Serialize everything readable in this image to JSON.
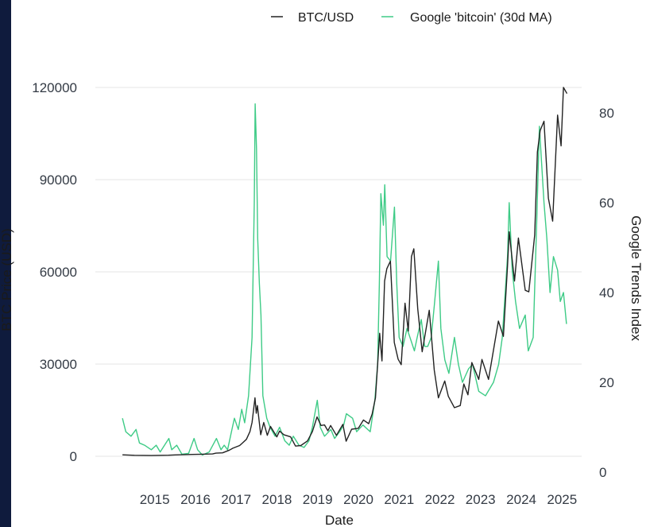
{
  "chart_data": {
    "type": "line",
    "xlabel": "Date",
    "ylabel": "BTC Price (USD)",
    "y2label": "Google Trends Index",
    "x_ticks": [
      "2015",
      "2016",
      "2017",
      "2018",
      "2019",
      "2020",
      "2021",
      "2022",
      "2023",
      "2024",
      "2025"
    ],
    "ylim": [
      0,
      120000
    ],
    "y_ticks": [
      0,
      30000,
      60000,
      90000,
      120000
    ],
    "y2lim": [
      0,
      80
    ],
    "y2_ticks": [
      0,
      20,
      40,
      60,
      80
    ],
    "grid": "horizontal",
    "legend": "top",
    "series": [
      {
        "name": "BTC/USD",
        "axis": "left",
        "color": "#222222",
        "points": [
          [
            "2014-09-15",
            460
          ],
          [
            "2015-01-01",
            320
          ],
          [
            "2015-06-01",
            230
          ],
          [
            "2015-11-01",
            330
          ],
          [
            "2016-01-01",
            430
          ],
          [
            "2016-06-01",
            600
          ],
          [
            "2016-12-01",
            750
          ],
          [
            "2017-01-01",
            1000
          ],
          [
            "2017-03-01",
            1100
          ],
          [
            "2017-05-01",
            2000
          ],
          [
            "2017-06-01",
            2600
          ],
          [
            "2017-08-01",
            3500
          ],
          [
            "2017-09-01",
            4500
          ],
          [
            "2017-10-01",
            5500
          ],
          [
            "2017-11-01",
            8000
          ],
          [
            "2017-11-20",
            11000
          ],
          [
            "2017-12-17",
            19000
          ],
          [
            "2017-12-28",
            14000
          ],
          [
            "2018-01-07",
            16500
          ],
          [
            "2018-02-06",
            7000
          ],
          [
            "2018-03-05",
            11000
          ],
          [
            "2018-04-06",
            6800
          ],
          [
            "2018-05-05",
            9700
          ],
          [
            "2018-07-01",
            6300
          ],
          [
            "2018-07-25",
            8200
          ],
          [
            "2018-09-01",
            7000
          ],
          [
            "2018-11-01",
            6300
          ],
          [
            "2018-12-15",
            3300
          ],
          [
            "2019-02-01",
            3500
          ],
          [
            "2019-04-02",
            5000
          ],
          [
            "2019-05-15",
            8000
          ],
          [
            "2019-06-26",
            12800
          ],
          [
            "2019-08-01",
            10000
          ],
          [
            "2019-09-01",
            10200
          ],
          [
            "2019-10-01",
            8300
          ],
          [
            "2019-10-26",
            10000
          ],
          [
            "2019-12-17",
            6800
          ],
          [
            "2020-02-13",
            10400
          ],
          [
            "2020-03-13",
            4900
          ],
          [
            "2020-05-01",
            8800
          ],
          [
            "2020-07-01",
            9100
          ],
          [
            "2020-08-15",
            11800
          ],
          [
            "2020-10-01",
            10600
          ],
          [
            "2020-11-01",
            13700
          ],
          [
            "2020-12-01",
            19000
          ],
          [
            "2021-01-08",
            40000
          ],
          [
            "2021-01-28",
            31000
          ],
          [
            "2021-02-21",
            57000
          ],
          [
            "2021-03-13",
            61000
          ],
          [
            "2021-04-14",
            63500
          ],
          [
            "2021-05-19",
            37000
          ],
          [
            "2021-06-22",
            31600
          ],
          [
            "2021-07-20",
            29800
          ],
          [
            "2021-08-23",
            49800
          ],
          [
            "2021-09-21",
            40700
          ],
          [
            "2021-10-20",
            65000
          ],
          [
            "2021-11-10",
            67500
          ],
          [
            "2021-12-15",
            48000
          ],
          [
            "2022-01-24",
            34000
          ],
          [
            "2022-03-28",
            47500
          ],
          [
            "2022-05-12",
            28000
          ],
          [
            "2022-06-18",
            19000
          ],
          [
            "2022-08-14",
            24500
          ],
          [
            "2022-09-15",
            19500
          ],
          [
            "2022-11-09",
            15800
          ],
          [
            "2022-12-31",
            16500
          ],
          [
            "2023-02-01",
            23500
          ],
          [
            "2023-03-10",
            20000
          ],
          [
            "2023-04-14",
            30500
          ],
          [
            "2023-06-15",
            25000
          ],
          [
            "2023-07-14",
            31500
          ],
          [
            "2023-09-11",
            25000
          ],
          [
            "2023-10-25",
            34500
          ],
          [
            "2023-12-08",
            44000
          ],
          [
            "2024-01-22",
            39000
          ],
          [
            "2024-02-28",
            62000
          ],
          [
            "2024-03-14",
            73000
          ],
          [
            "2024-05-01",
            57000
          ],
          [
            "2024-06-05",
            71000
          ],
          [
            "2024-08-05",
            54000
          ],
          [
            "2024-09-06",
            53500
          ],
          [
            "2024-10-29",
            72000
          ],
          [
            "2024-11-22",
            99000
          ],
          [
            "2024-12-17",
            106000
          ],
          [
            "2025-01-20",
            109000
          ],
          [
            "2025-02-28",
            84000
          ],
          [
            "2025-04-08",
            76500
          ],
          [
            "2025-05-22",
            111000
          ],
          [
            "2025-06-22",
            101000
          ],
          [
            "2025-07-14",
            120000
          ],
          [
            "2025-08-14",
            118000
          ]
        ]
      },
      {
        "name": "Google 'bitcoin' (30d MA)",
        "axis": "right",
        "color": "#3ecb86",
        "points": [
          [
            "2014-09-15",
            12
          ],
          [
            "2014-10-15",
            9
          ],
          [
            "2014-12-01",
            8
          ],
          [
            "2015-01-15",
            9.5
          ],
          [
            "2015-02-15",
            6.5
          ],
          [
            "2015-04-01",
            6
          ],
          [
            "2015-06-01",
            5
          ],
          [
            "2015-07-15",
            6
          ],
          [
            "2015-08-20",
            4.5
          ],
          [
            "2015-11-05",
            7.5
          ],
          [
            "2015-12-01",
            5
          ],
          [
            "2016-01-15",
            6
          ],
          [
            "2016-03-01",
            4
          ],
          [
            "2016-05-01",
            4.2
          ],
          [
            "2016-06-18",
            7.5
          ],
          [
            "2016-07-20",
            5
          ],
          [
            "2016-09-01",
            3.8
          ],
          [
            "2016-11-01",
            4.5
          ],
          [
            "2017-01-05",
            7.5
          ],
          [
            "2017-02-15",
            5
          ],
          [
            "2017-03-15",
            6
          ],
          [
            "2017-04-15",
            5
          ],
          [
            "2017-05-28",
            10
          ],
          [
            "2017-06-15",
            12
          ],
          [
            "2017-07-20",
            9.5
          ],
          [
            "2017-08-20",
            14
          ],
          [
            "2017-09-15",
            11
          ],
          [
            "2017-10-20",
            17
          ],
          [
            "2017-11-20",
            30
          ],
          [
            "2017-12-10",
            60
          ],
          [
            "2017-12-18",
            82
          ],
          [
            "2017-12-30",
            72
          ],
          [
            "2018-01-10",
            52
          ],
          [
            "2018-01-25",
            42
          ],
          [
            "2018-02-08",
            35
          ],
          [
            "2018-02-25",
            17
          ],
          [
            "2018-04-01",
            12
          ],
          [
            "2018-05-01",
            10
          ],
          [
            "2018-06-15",
            8
          ],
          [
            "2018-07-25",
            10
          ],
          [
            "2018-09-10",
            7
          ],
          [
            "2018-10-20",
            6
          ],
          [
            "2018-11-25",
            8
          ],
          [
            "2019-01-15",
            6
          ],
          [
            "2019-03-01",
            5.5
          ],
          [
            "2019-04-15",
            7
          ],
          [
            "2019-05-15",
            10
          ],
          [
            "2019-06-28",
            16
          ],
          [
            "2019-07-25",
            10
          ],
          [
            "2019-09-01",
            8
          ],
          [
            "2019-10-28",
            9.5
          ],
          [
            "2019-12-01",
            7.5
          ],
          [
            "2020-01-15",
            9
          ],
          [
            "2020-02-20",
            10.5
          ],
          [
            "2020-03-15",
            13
          ],
          [
            "2020-05-10",
            12
          ],
          [
            "2020-06-15",
            9
          ],
          [
            "2020-08-10",
            10.5
          ],
          [
            "2020-10-15",
            9
          ],
          [
            "2020-11-25",
            16
          ],
          [
            "2020-12-20",
            24
          ],
          [
            "2021-01-05",
            42
          ],
          [
            "2021-01-18",
            62
          ],
          [
            "2021-02-10",
            55
          ],
          [
            "2021-02-22",
            64
          ],
          [
            "2021-03-15",
            48
          ],
          [
            "2021-04-15",
            47
          ],
          [
            "2021-05-20",
            59
          ],
          [
            "2021-06-10",
            42
          ],
          [
            "2021-07-01",
            30
          ],
          [
            "2021-08-05",
            28
          ],
          [
            "2021-09-10",
            32
          ],
          [
            "2021-10-20",
            29
          ],
          [
            "2021-11-15",
            27
          ],
          [
            "2021-12-10",
            30
          ],
          [
            "2022-01-15",
            34
          ],
          [
            "2022-02-15",
            28
          ],
          [
            "2022-03-15",
            28
          ],
          [
            "2022-04-15",
            30
          ],
          [
            "2022-05-12",
            37
          ],
          [
            "2022-06-18",
            47
          ],
          [
            "2022-07-10",
            32
          ],
          [
            "2022-08-15",
            25
          ],
          [
            "2022-09-20",
            22
          ],
          [
            "2022-11-09",
            30
          ],
          [
            "2022-12-15",
            24
          ],
          [
            "2023-01-20",
            20
          ],
          [
            "2023-03-15",
            23
          ],
          [
            "2023-04-20",
            24
          ],
          [
            "2023-06-15",
            18
          ],
          [
            "2023-08-15",
            17
          ],
          [
            "2023-10-25",
            20
          ],
          [
            "2023-12-10",
            24
          ],
          [
            "2024-01-12",
            30
          ],
          [
            "2024-02-28",
            48
          ],
          [
            "2024-03-14",
            60
          ],
          [
            "2024-04-10",
            45
          ],
          [
            "2024-05-10",
            38
          ],
          [
            "2024-06-15",
            32
          ],
          [
            "2024-08-05",
            35
          ],
          [
            "2024-09-01",
            27
          ],
          [
            "2024-10-15",
            30
          ],
          [
            "2024-11-15",
            55
          ],
          [
            "2024-12-10",
            77
          ],
          [
            "2025-01-20",
            60
          ],
          [
            "2025-02-15",
            52
          ],
          [
            "2025-03-15",
            40
          ],
          [
            "2025-04-15",
            48
          ],
          [
            "2025-05-22",
            45
          ],
          [
            "2025-06-15",
            38
          ],
          [
            "2025-07-14",
            40
          ],
          [
            "2025-08-10",
            33
          ]
        ]
      }
    ]
  }
}
